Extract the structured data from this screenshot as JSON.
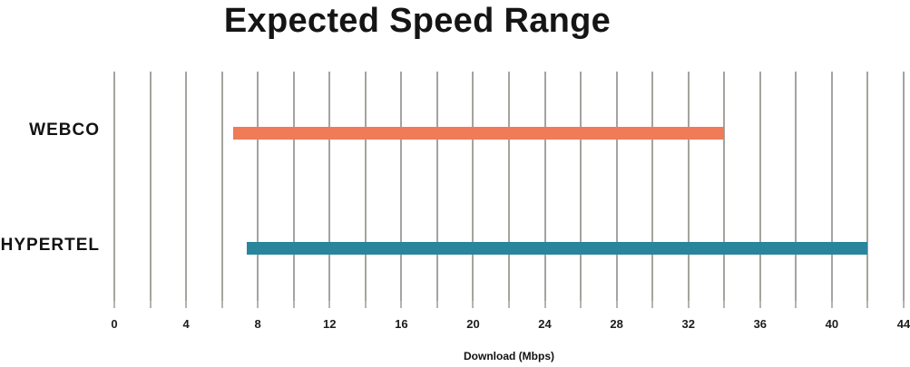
{
  "chart_data": {
    "type": "bar",
    "orientation": "horizontal",
    "title": "Expected Speed Range",
    "xlabel": "Download (Mbps)",
    "categories": [
      "WEBCO",
      "HYPERTEL"
    ],
    "series": [
      {
        "name": "WEBCO",
        "range_mbps": [
          6.6,
          34
        ],
        "color": "#ef7b58"
      },
      {
        "name": "HYPERTEL",
        "range_mbps": [
          7.4,
          42
        ],
        "color": "#28859c"
      }
    ],
    "xlim": [
      0,
      44
    ],
    "x_ticks": [
      0,
      4,
      8,
      12,
      16,
      20,
      24,
      28,
      32,
      36,
      40,
      44
    ],
    "gridline_step": 2,
    "grid": true,
    "gridline_color": "#a6a39f",
    "tick_color": "#b7b4b0",
    "legend": "none",
    "unit": "Mbps"
  }
}
